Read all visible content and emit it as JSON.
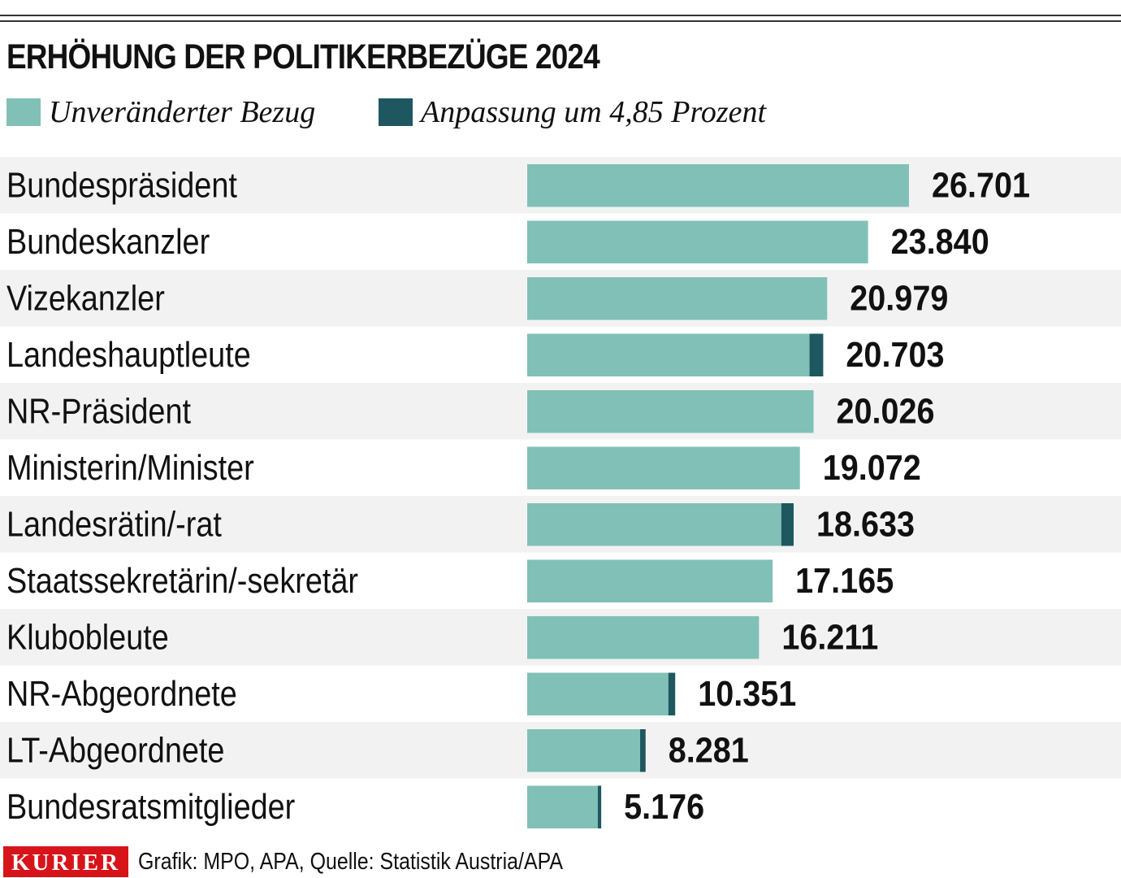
{
  "title": "ERHÖHUNG DER POLITIKERBEZÜGE 2024",
  "legend": [
    {
      "label": "Unveränderter Bezug",
      "color": "#81c0b6"
    },
    {
      "label": "Anpassung um 4,85 Prozent",
      "color": "#1e5760"
    }
  ],
  "colors": {
    "base": "#81c0b6",
    "increase": "#1e5760",
    "stripe": "#f2f2f2",
    "brand": "#d6141a"
  },
  "chart_data": {
    "type": "bar",
    "orientation": "horizontal",
    "stacked": true,
    "title": "ERHÖHUNG DER POLITIKERBEZÜGE 2024",
    "categories": [
      "Bundespräsident",
      "Bundeskanzler",
      "Vizekanzler",
      "Landeshauptleute",
      "NR-Präsident",
      "Ministerin/Minister",
      "Landesrätin/-rat",
      "Staatssekretärin/-sekretär",
      "Klubobleute",
      "NR-Abgeordnete",
      "LT-Abgeordnete",
      "Bundesratsmitglieder"
    ],
    "series": [
      {
        "name": "Unveränderter Bezug",
        "values": [
          26701,
          23840,
          20979,
          19745,
          20026,
          19072,
          17771,
          17165,
          16211,
          9872,
          7898,
          4937
        ]
      },
      {
        "name": "Anpassung um 4,85 Prozent",
        "values": [
          0,
          0,
          0,
          958,
          0,
          0,
          862,
          0,
          0,
          479,
          383,
          239
        ]
      }
    ],
    "totals": [
      26701,
      23840,
      20979,
      20703,
      20026,
      19072,
      18633,
      17165,
      16211,
      10351,
      8281,
      5176
    ],
    "value_labels": [
      "26.701",
      "23.840",
      "20.979",
      "20.703",
      "20.026",
      "19.072",
      "18.633",
      "17.165",
      "16.211",
      "10.351",
      "8.281",
      "5.176"
    ],
    "xlim": [
      0,
      26701
    ],
    "xlabel": "",
    "ylabel": "",
    "grid": false,
    "legend_position": "top-left"
  },
  "footer": {
    "brand": "KURIER",
    "source": "Grafik: MPO, APA, Quelle: Statistik Austria/APA"
  }
}
